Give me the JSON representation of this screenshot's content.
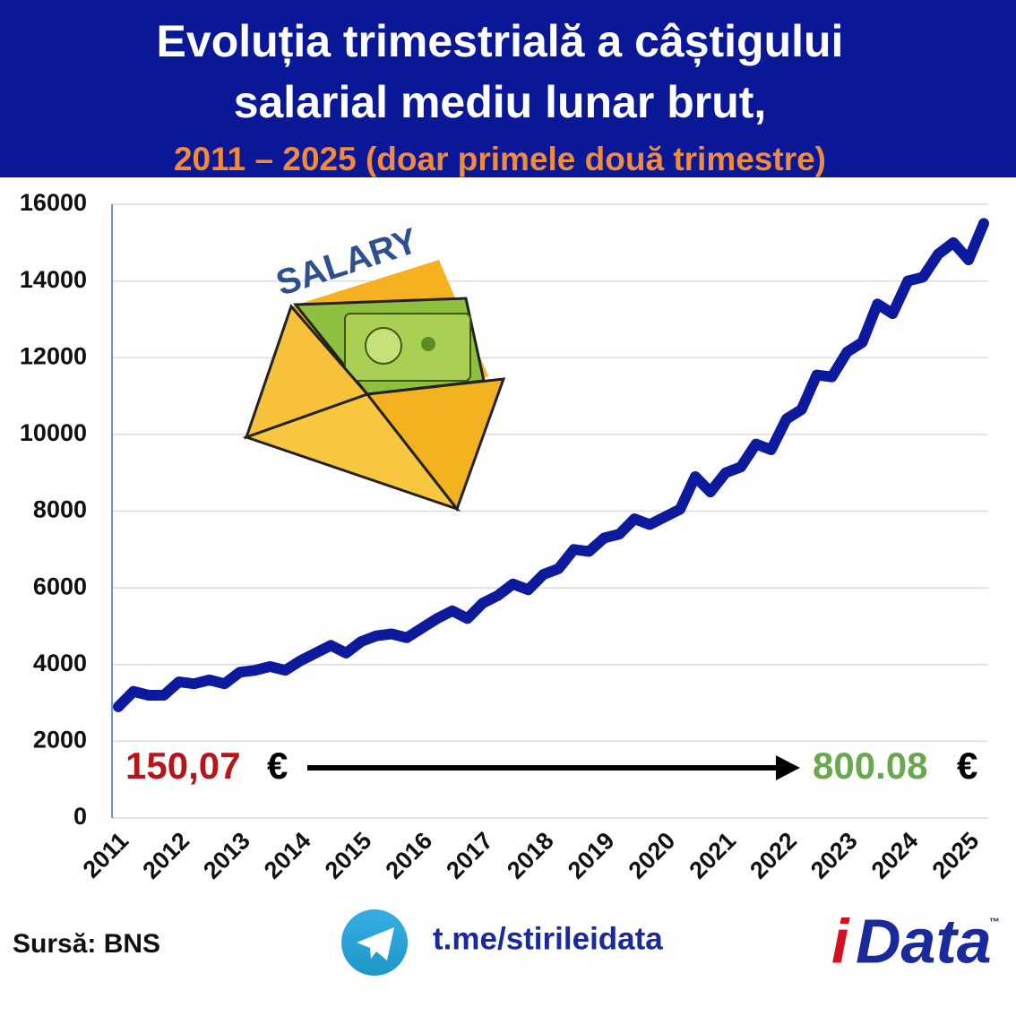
{
  "chart_data": {
    "type": "line",
    "title": [
      "Evoluția trimestrială a câștigului",
      "salarial mediu lunar brut,"
    ],
    "subtitle": "2011 – 2025 (doar primele două trimestre)",
    "categories": [
      "2011",
      null,
      null,
      null,
      "2012",
      null,
      null,
      null,
      "2013",
      null,
      null,
      null,
      "2014",
      null,
      null,
      null,
      "2015",
      null,
      null,
      null,
      "2016",
      null,
      null,
      null,
      "2017",
      null,
      null,
      null,
      "2018",
      null,
      null,
      null,
      "2019",
      null,
      null,
      null,
      "2020",
      null,
      null,
      null,
      "2021",
      null,
      null,
      null,
      "2022",
      null,
      null,
      null,
      "2023",
      null,
      null,
      null,
      "2024",
      null,
      null,
      null,
      "2025",
      null
    ],
    "series": [
      {
        "name": "Câștig salarial mediu lunar brut",
        "color": "#0d1a9e",
        "values": [
          2900,
          3300,
          3200,
          3200,
          3550,
          3500,
          3600,
          3500,
          3800,
          3850,
          3950,
          3850,
          4100,
          4300,
          4500,
          4300,
          4600,
          4750,
          4800,
          4700,
          4950,
          5200,
          5400,
          5200,
          5600,
          5800,
          6100,
          5950,
          6350,
          6500,
          7000,
          6950,
          7300,
          7400,
          7800,
          7650,
          7850,
          8050,
          8900,
          8500,
          9000,
          9150,
          9750,
          9600,
          10400,
          10650,
          11550,
          11500,
          12150,
          12400,
          13400,
          13150,
          14000,
          14100,
          14700,
          15000,
          14550,
          15500
        ]
      }
    ],
    "ylim": [
      0,
      16000
    ],
    "yticks": [
      0,
      2000,
      4000,
      6000,
      8000,
      10000,
      12000,
      14000,
      16000
    ],
    "grid": true,
    "annotations": {
      "start": {
        "amount": "150,07",
        "currency": "€"
      },
      "end": {
        "amount": "800.08",
        "currency": "€"
      }
    },
    "illustration_text": "SALARY",
    "source": "Sursă: BNS",
    "link": "t.me/stirileidata",
    "logo": {
      "prefix": "i",
      "name": "Data",
      "mark": "™"
    }
  }
}
